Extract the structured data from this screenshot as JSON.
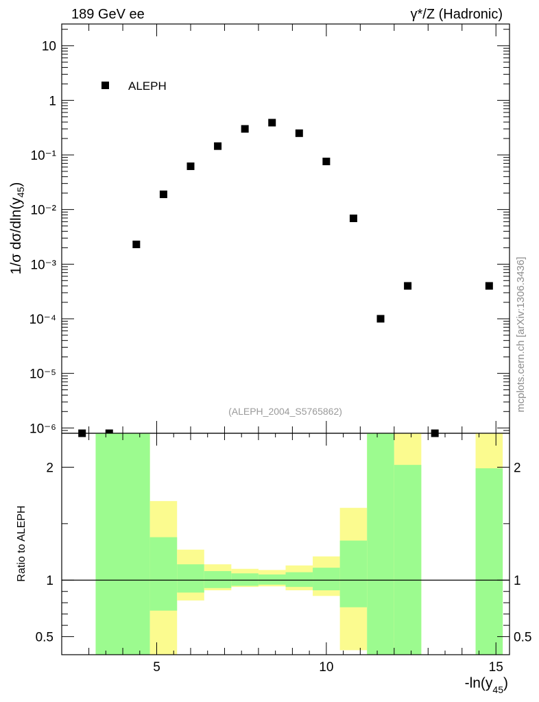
{
  "header": {
    "left": "189 GeV ee",
    "right": "γ*/Z (Hadronic)"
  },
  "credit": "mcplots.cern.ch [arXiv:1306.3436]",
  "chart_data": [
    {
      "type": "scatter",
      "yscale": "log",
      "ylabel": "1/σ dσ/dln(y45)",
      "xlim": [
        2.2,
        15.4
      ],
      "ylim": [
        8e-07,
        25
      ],
      "y_tick_labels": [
        "10⁻⁶",
        "10⁻⁵",
        "10⁻⁴",
        "10⁻³",
        "10⁻²",
        "10⁻¹",
        "1",
        "10"
      ],
      "legend": {
        "position": "top-left",
        "entries": [
          "ALEPH"
        ]
      },
      "annotation": "(ALEPH_2004_S5765862)",
      "series": [
        {
          "name": "ALEPH",
          "marker": "square",
          "color": "#000000",
          "x": [
            2.8,
            3.6,
            4.4,
            5.2,
            6.0,
            6.8,
            7.6,
            8.4,
            9.2,
            10.0,
            10.8,
            11.6,
            12.4,
            13.2,
            14.8
          ],
          "y": [
            8e-07,
            8e-07,
            0.0023,
            0.019,
            0.062,
            0.145,
            0.3,
            0.39,
            0.25,
            0.076,
            0.0069,
            0.0001,
            0.0004,
            8e-07,
            0.0004
          ]
        }
      ]
    },
    {
      "type": "area",
      "ylabel": "Ratio to ALEPH",
      "xlabel": "-ln(y45)",
      "xlim": [
        2.2,
        15.4
      ],
      "ylim": [
        0.34,
        2.3
      ],
      "x_tick_labels": [
        "5",
        "10",
        "15"
      ],
      "y_tick_labels": [
        "0.5",
        "1",
        "2"
      ],
      "reference_line": 1,
      "colors": {
        "stat": "#9cfb8f",
        "total": "#fbfb8f"
      },
      "bins": [
        {
          "lo": 3.2,
          "hi": 4.8,
          "stat": [
            0.34,
            2.3
          ],
          "total": [
            0.34,
            2.3
          ]
        },
        {
          "lo": 4.8,
          "hi": 5.6,
          "stat": [
            0.73,
            1.38
          ],
          "total": [
            0.34,
            1.7
          ]
        },
        {
          "lo": 5.6,
          "hi": 6.4,
          "stat": [
            0.89,
            1.14
          ],
          "total": [
            0.82,
            1.27
          ]
        },
        {
          "lo": 6.4,
          "hi": 7.2,
          "stat": [
            0.93,
            1.08
          ],
          "total": [
            0.91,
            1.14
          ]
        },
        {
          "lo": 7.2,
          "hi": 8.0,
          "stat": [
            0.95,
            1.06
          ],
          "total": [
            0.94,
            1.1
          ]
        },
        {
          "lo": 8.0,
          "hi": 8.8,
          "stat": [
            0.96,
            1.05
          ],
          "total": [
            0.945,
            1.09
          ]
        },
        {
          "lo": 8.8,
          "hi": 9.6,
          "stat": [
            0.94,
            1.07
          ],
          "total": [
            0.91,
            1.13
          ]
        },
        {
          "lo": 9.6,
          "hi": 10.4,
          "stat": [
            0.91,
            1.11
          ],
          "total": [
            0.86,
            1.21
          ]
        },
        {
          "lo": 10.4,
          "hi": 11.2,
          "stat": [
            0.76,
            1.35
          ],
          "total": [
            0.38,
            1.64
          ]
        },
        {
          "lo": 11.2,
          "hi": 12.0,
          "stat": [
            0.34,
            2.3
          ],
          "total": [
            0.34,
            2.3
          ]
        },
        {
          "lo": 12.0,
          "hi": 12.8,
          "stat": [
            0.34,
            2.02
          ],
          "total": [
            0.34,
            2.3
          ]
        },
        {
          "lo": 14.4,
          "hi": 15.2,
          "stat": [
            0.34,
            1.99
          ],
          "total": [
            0.34,
            2.3
          ]
        }
      ]
    }
  ]
}
